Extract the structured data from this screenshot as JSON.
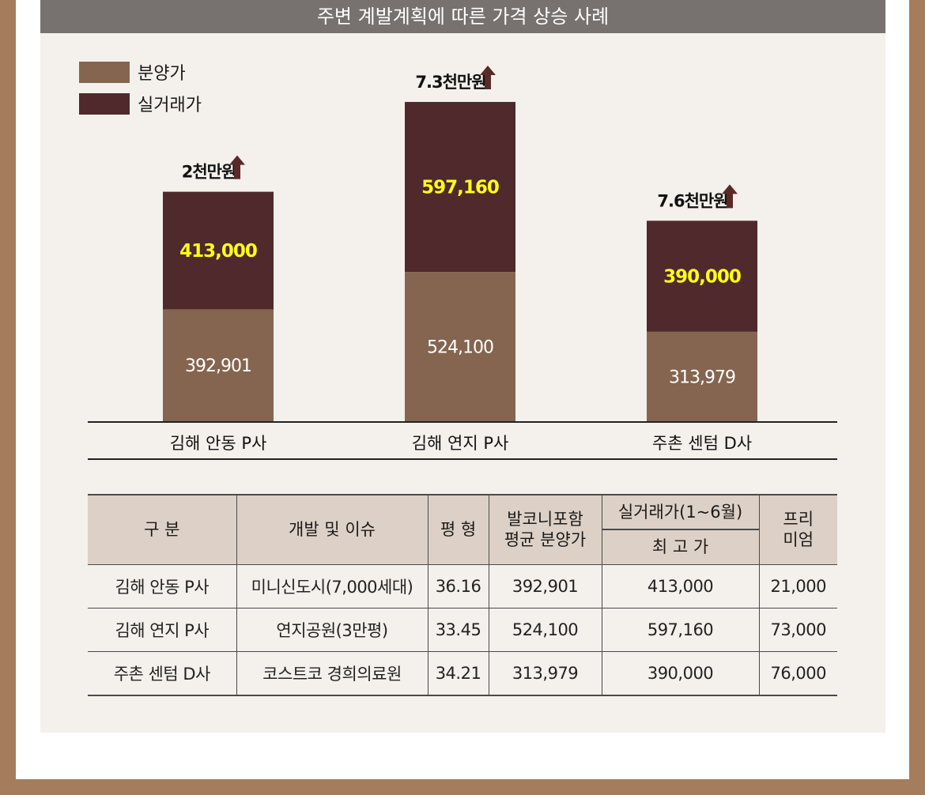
{
  "title": "주변 계발계획에 따른 가격 상승 사례",
  "colors": {
    "presale": "#856550",
    "actual": "#4f292b",
    "highlight": "#ffff1a"
  },
  "chart_data": {
    "type": "bar",
    "stacked": true,
    "categories": [
      "김해 안동 P사",
      "김해 연지 P사",
      "주촌 센텀 D사"
    ],
    "series": [
      {
        "name": "분양가",
        "values": [
          392901,
          524100,
          313979
        ],
        "labels": [
          "392,901",
          "524,100",
          "313,979"
        ]
      },
      {
        "name": "실거래가",
        "values": [
          413000,
          597160,
          390000
        ],
        "labels": [
          "413,000",
          "597,160",
          "390,000"
        ]
      }
    ],
    "annotations": [
      "2천만원",
      "7.3천만원",
      "7.6천만원"
    ],
    "legend": "top-left",
    "grid": false
  },
  "table": {
    "headers": {
      "category": "구 분",
      "development": "개발 및 이슈",
      "area": "평 형",
      "price_line1": "발코니포함",
      "price_line2": "평균 분양가",
      "actual_line1": "실거래가(1~6월)",
      "actual_line2": "최 고 가",
      "premium_line1": "프리",
      "premium_line2": "미엄"
    },
    "rows": [
      [
        "김해 안동 P사",
        "미니신도시(7,000세대)",
        "36.16",
        "392,901",
        "413,000",
        "21,000"
      ],
      [
        "김해 연지 P사",
        "연지공원(3만평)",
        "33.45",
        "524,100",
        "597,160",
        "73,000"
      ],
      [
        "주촌 센텀 D사",
        "코스트코 경희의료원",
        "34.21",
        "313,979",
        "390,000",
        "76,000"
      ]
    ]
  }
}
